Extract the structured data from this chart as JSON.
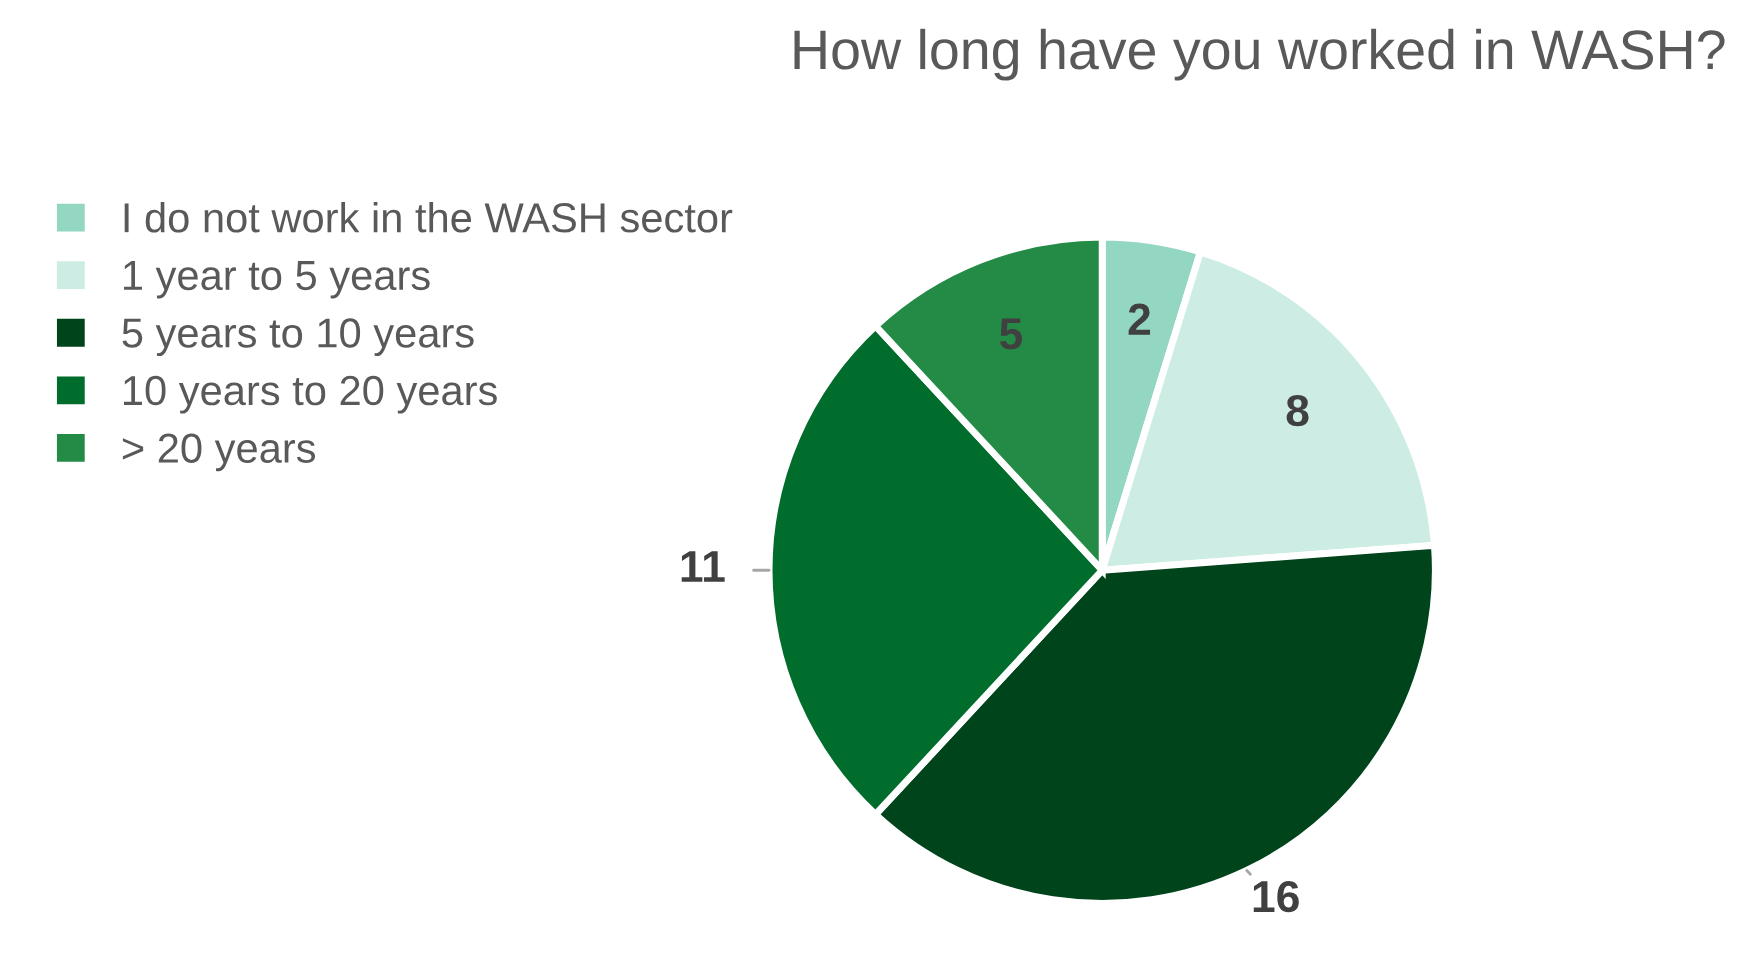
{
  "chart_data": {
    "type": "pie",
    "title": "How long have you worked in WASH?",
    "categories": [
      "I do not work in the WASH sector",
      "1 year to 5 years",
      "5 years to 10 years",
      "10 years to 20 years",
      "> 20 years"
    ],
    "values": [
      2,
      8,
      16,
      11,
      5
    ],
    "colors": [
      "#93d6c2",
      "#cdede4",
      "#00441b",
      "#006d2c",
      "#238b45"
    ],
    "data_labels": true,
    "legend": "top left"
  }
}
